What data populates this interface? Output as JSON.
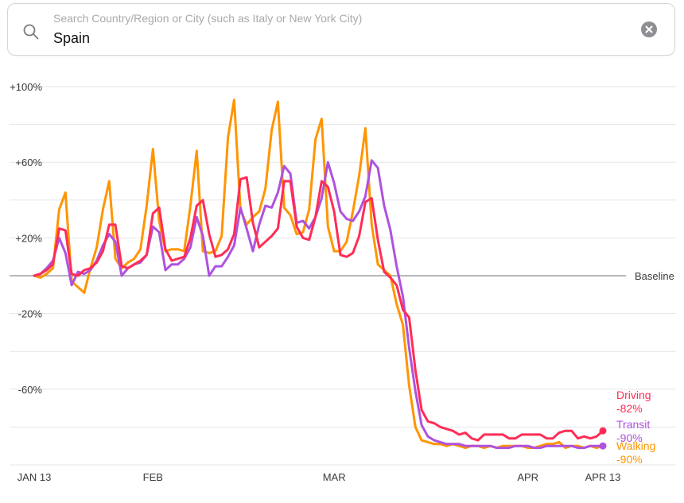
{
  "search": {
    "placeholder": "Search Country/Region or City (such as Italy or New York City)",
    "value": "Spain",
    "search_icon": "magnifying-glass-icon",
    "clear_icon": "x-circle-fill-icon"
  },
  "chart_data": {
    "type": "line",
    "baseline_label": "Baseline",
    "ylim": [
      -100,
      100
    ],
    "y_ticks": [
      {
        "value": 100,
        "label": "+100%"
      },
      {
        "value": 60,
        "label": "+60%"
      },
      {
        "value": 20,
        "label": "+20%"
      },
      {
        "value": -20,
        "label": "-20%"
      },
      {
        "value": -60,
        "label": "-60%"
      }
    ],
    "x_range_days": [
      0,
      91
    ],
    "x_ticks": [
      {
        "day": 0,
        "label": "JAN 13"
      },
      {
        "day": 19,
        "label": "FEB"
      },
      {
        "day": 48,
        "label": "MAR"
      },
      {
        "day": 79,
        "label": "APR"
      },
      {
        "day": 91,
        "label": "APR 13"
      }
    ],
    "series": [
      {
        "name": "Driving",
        "end_value_label": "-82%",
        "color": "#ff2d55",
        "dot": true,
        "values": [
          0,
          1,
          3,
          6,
          25,
          24,
          1,
          0,
          3,
          4,
          7,
          13,
          27,
          27,
          5,
          4,
          6,
          8,
          11,
          33,
          36,
          14,
          8,
          9,
          10,
          20,
          37,
          40,
          22,
          10,
          11,
          14,
          22,
          51,
          52,
          28,
          15,
          18,
          21,
          25,
          50,
          50,
          26,
          20,
          19,
          31,
          50,
          47,
          34,
          11,
          10,
          12,
          21,
          39,
          41,
          19,
          2,
          -1,
          -5,
          -18,
          -22,
          -50,
          -71,
          -77,
          -78,
          -80,
          -81,
          -82,
          -84,
          -83,
          -86,
          -87,
          -84,
          -84,
          -84,
          -84,
          -86,
          -86,
          -84,
          -84,
          -84,
          -84,
          -86,
          -86,
          -83,
          -82,
          -82,
          -86,
          -85,
          -86,
          -85,
          -82
        ]
      },
      {
        "name": "Transit",
        "end_value_label": "-90%",
        "color": "#af52de",
        "dot": true,
        "values": [
          0,
          1,
          4,
          8,
          20,
          12,
          -5,
          2,
          1,
          3,
          8,
          16,
          22,
          18,
          0,
          4,
          6,
          7,
          11,
          26,
          23,
          3,
          6,
          6,
          9,
          15,
          31,
          21,
          0,
          5,
          5,
          10,
          16,
          36,
          25,
          13,
          27,
          37,
          36,
          44,
          58,
          54,
          28,
          29,
          25,
          31,
          41,
          60,
          49,
          34,
          30,
          29,
          34,
          42,
          61,
          57,
          37,
          24,
          5,
          -11,
          -38,
          -61,
          -79,
          -85,
          -87,
          -88,
          -89,
          -89,
          -89,
          -90,
          -90,
          -90,
          -90,
          -90,
          -91,
          -91,
          -91,
          -90,
          -90,
          -90,
          -91,
          -91,
          -90,
          -90,
          -90,
          -90,
          -90,
          -91,
          -91,
          -90,
          -90,
          -90
        ]
      },
      {
        "name": "Walking",
        "end_value_label": "-90%",
        "color": "#ff9500",
        "dot": false,
        "values": [
          0,
          -1,
          1,
          4,
          35,
          44,
          -3,
          -6,
          -9,
          4,
          15,
          35,
          50,
          9,
          4,
          7,
          9,
          14,
          37,
          67,
          29,
          13,
          14,
          14,
          13,
          37,
          66,
          13,
          12,
          13,
          21,
          73,
          93,
          35,
          27,
          31,
          34,
          46,
          77,
          92,
          36,
          32,
          22,
          23,
          35,
          72,
          83,
          26,
          13,
          13,
          18,
          34,
          53,
          78,
          27,
          6,
          3,
          0,
          -15,
          -26,
          -58,
          -80,
          -87,
          -88,
          -89,
          -89,
          -90,
          -89,
          -90,
          -91,
          -90,
          -90,
          -91,
          -90,
          -91,
          -90,
          -90,
          -90,
          -90,
          -91,
          -91,
          -90,
          -89,
          -89,
          -88,
          -91,
          -90,
          -90,
          -91,
          -90,
          -91,
          -90
        ]
      }
    ]
  }
}
